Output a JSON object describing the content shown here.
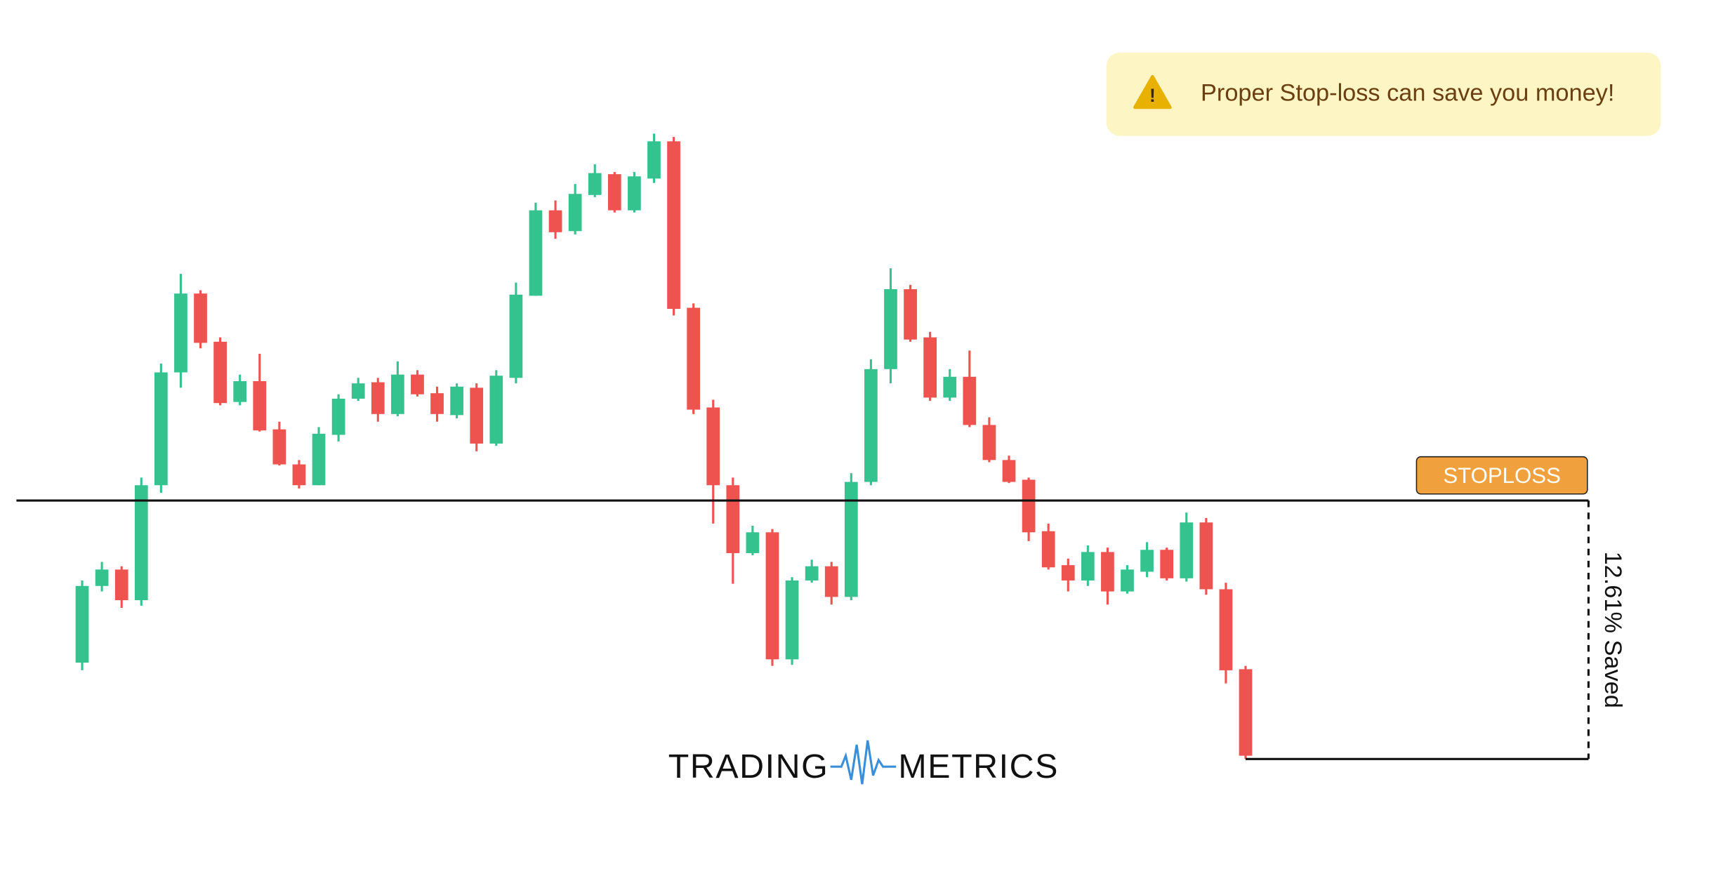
{
  "chart_data": {
    "type": "candlestick",
    "alert": "Proper Stop-loss can save you money!",
    "stoploss_label": "STOPLOSS",
    "saved_label": "12.61% Saved",
    "logo": [
      "TRADING",
      "METRICS"
    ],
    "up_color": "#34c38f",
    "down_color": "#ef5350",
    "ylim": [
      0,
      800
    ],
    "stoploss": 343,
    "exit": 107,
    "open": [
      195,
      265,
      280,
      252,
      357,
      460,
      532,
      488,
      433,
      452,
      408,
      376,
      357,
      403,
      436,
      451,
      422,
      458,
      441,
      421,
      446,
      395,
      455,
      530,
      608,
      589,
      622,
      641,
      608,
      637,
      671,
      519,
      428,
      357,
      295,
      314,
      198,
      270,
      283,
      255,
      360,
      463,
      536,
      492,
      437,
      456,
      412,
      380,
      362,
      315,
      284,
      270,
      296,
      260,
      278,
      298,
      272,
      323,
      262,
      189
    ],
    "high": [
      270,
      287,
      283,
      364,
      468,
      550,
      535,
      492,
      458,
      477,
      415,
      380,
      410,
      440,
      455,
      455,
      470,
      462,
      447,
      450,
      450,
      462,
      542,
      615,
      617,
      632,
      650,
      643,
      643,
      678,
      675,
      523,
      435,
      364,
      320,
      317,
      273,
      289,
      287,
      368,
      472,
      555,
      540,
      497,
      463,
      480,
      419,
      384,
      364,
      322,
      290,
      302,
      300,
      284,
      305,
      300,
      332,
      327,
      268,
      192
    ],
    "low": [
      188,
      260,
      245,
      247,
      350,
      446,
      482,
      430,
      430,
      406,
      375,
      354,
      357,
      397,
      434,
      415,
      420,
      438,
      415,
      418,
      388,
      393,
      450,
      530,
      582,
      586,
      620,
      606,
      606,
      633,
      512,
      422,
      322,
      267,
      293,
      192,
      193,
      268,
      248,
      252,
      357,
      450,
      488,
      434,
      434,
      410,
      378,
      359,
      306,
      280,
      260,
      265,
      248,
      258,
      273,
      270,
      269,
      257,
      176,
      107
    ],
    "close": [
      265,
      280,
      252,
      357,
      460,
      532,
      487,
      432,
      452,
      407,
      376,
      357,
      404,
      436,
      450,
      422,
      458,
      440,
      422,
      447,
      395,
      457,
      531,
      608,
      588,
      623,
      642,
      608,
      639,
      671,
      518,
      426,
      357,
      295,
      314,
      198,
      270,
      283,
      255,
      360,
      463,
      536,
      490,
      437,
      456,
      412,
      380,
      360,
      314,
      282,
      270,
      296,
      260,
      280,
      298,
      272,
      323,
      262,
      188,
      110
    ]
  }
}
